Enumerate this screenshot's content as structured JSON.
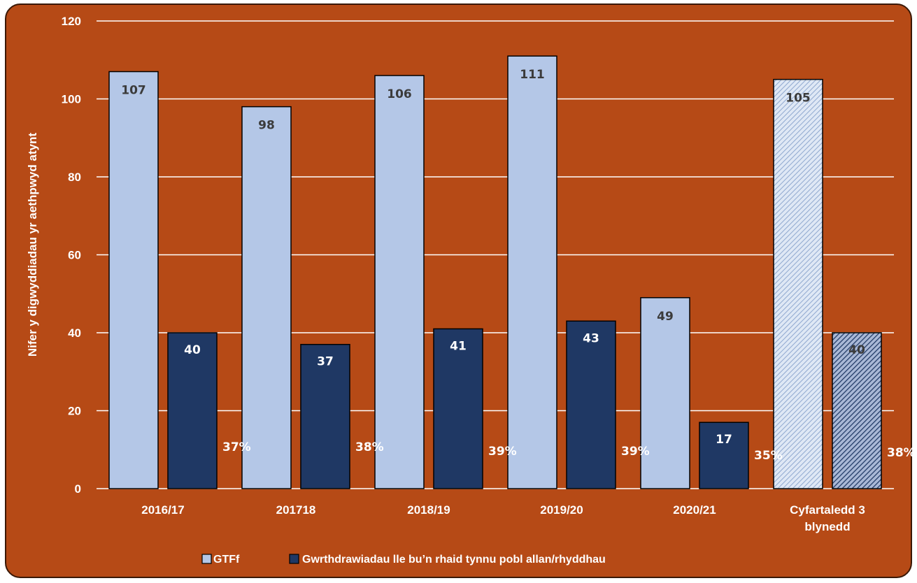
{
  "chart_data": {
    "type": "bar",
    "ylabel": "Nifer y digwyddiadau yr aethpwyd atynt",
    "ylim": [
      0,
      120
    ],
    "yticks": [
      0,
      20,
      40,
      60,
      80,
      100,
      120
    ],
    "grid": true,
    "legend_position": "bottom",
    "categories": [
      [
        "2016/17"
      ],
      [
        "201718"
      ],
      [
        "2018/19"
      ],
      [
        "2019/20"
      ],
      [
        "2020/21"
      ],
      [
        "Cyfartaledd 3",
        "blynedd"
      ]
    ],
    "series": [
      {
        "name": "GTFf",
        "values": [
          107,
          98,
          106,
          111,
          49,
          105
        ],
        "color": "#b4c7e7"
      },
      {
        "name": "Gwrthdrawiadau lle bu’n rhaid tynnu pobl allan/rhyddhau",
        "values": [
          40,
          37,
          41,
          43,
          17,
          40
        ],
        "color": "#1f3864"
      }
    ],
    "percent_labels": [
      "37%",
      "38%",
      "39%",
      "39%",
      "35%",
      "38%"
    ],
    "hatched_last_category": true,
    "background_color": "#b64a16"
  }
}
